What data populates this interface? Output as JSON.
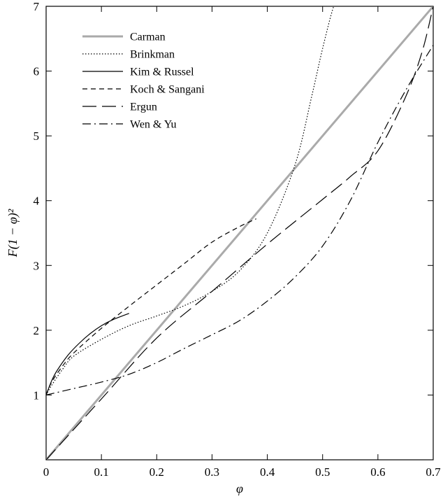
{
  "chart_data": {
    "type": "line",
    "title": "",
    "xlabel": "φ",
    "ylabel": "F(1 − φ)²",
    "xlim": [
      0,
      0.7
    ],
    "ylim": [
      0,
      7
    ],
    "x_ticks": [
      0,
      0.1,
      0.2,
      0.3,
      0.4,
      0.5,
      0.6,
      0.7
    ],
    "x_tick_labels": [
      "0",
      "0.1",
      "0.2",
      "0.3",
      "0.4",
      "0.5",
      "0.6",
      "0.7"
    ],
    "y_ticks": [
      1,
      2,
      3,
      4,
      5,
      6,
      7
    ],
    "y_tick_labels": [
      "1",
      "2",
      "3",
      "4",
      "5",
      "6",
      "7"
    ],
    "grid": false,
    "legend_position": "top-left",
    "series": [
      {
        "name": "Carman",
        "style": "solid-gray",
        "color": "#aaaaaa",
        "x": [
          0,
          0.7
        ],
        "y": [
          0,
          7
        ]
      },
      {
        "name": "Brinkman",
        "style": "dotted",
        "color": "#000000",
        "x": [
          0,
          0.01,
          0.03,
          0.05,
          0.1,
          0.15,
          0.2,
          0.25,
          0.3,
          0.35,
          0.4,
          0.45,
          0.48,
          0.5,
          0.52,
          0.53
        ],
        "y": [
          1,
          1.15,
          1.4,
          1.6,
          1.86,
          2.07,
          2.22,
          2.38,
          2.6,
          2.92,
          3.5,
          4.55,
          5.6,
          6.35,
          7.0,
          7.1
        ]
      },
      {
        "name": "Kim & Russel",
        "style": "solid",
        "color": "#000000",
        "x": [
          0,
          0.01,
          0.02,
          0.04,
          0.06,
          0.08,
          0.1,
          0.12,
          0.15
        ],
        "y": [
          1.0,
          1.22,
          1.38,
          1.62,
          1.8,
          1.95,
          2.07,
          2.16,
          2.26
        ]
      },
      {
        "name": "Koch & Sangani",
        "style": "short-dash",
        "color": "#000000",
        "x": [
          0,
          0.01,
          0.03,
          0.05,
          0.1,
          0.15,
          0.2,
          0.25,
          0.3,
          0.35,
          0.38
        ],
        "y": [
          1.0,
          1.2,
          1.45,
          1.65,
          2.03,
          2.37,
          2.7,
          3.03,
          3.36,
          3.6,
          3.72
        ]
      },
      {
        "name": "Ergun",
        "style": "long-dash",
        "color": "#000000",
        "x": [
          0,
          0.1,
          0.2,
          0.3,
          0.4,
          0.5,
          0.55,
          0.6,
          0.65,
          0.68,
          0.7
        ],
        "y": [
          0,
          0.94,
          1.88,
          2.6,
          3.33,
          4.02,
          4.37,
          4.77,
          5.6,
          6.3,
          7.0
        ]
      },
      {
        "name": "Wen & Yu",
        "style": "dash-dot",
        "color": "#000000",
        "x": [
          0,
          0.05,
          0.1,
          0.15,
          0.2,
          0.25,
          0.3,
          0.35,
          0.4,
          0.45,
          0.5,
          0.55,
          0.6,
          0.65,
          0.7
        ],
        "y": [
          1.0,
          1.1,
          1.2,
          1.32,
          1.5,
          1.72,
          1.93,
          2.15,
          2.45,
          2.82,
          3.3,
          4.0,
          4.9,
          5.7,
          6.4
        ]
      }
    ]
  }
}
